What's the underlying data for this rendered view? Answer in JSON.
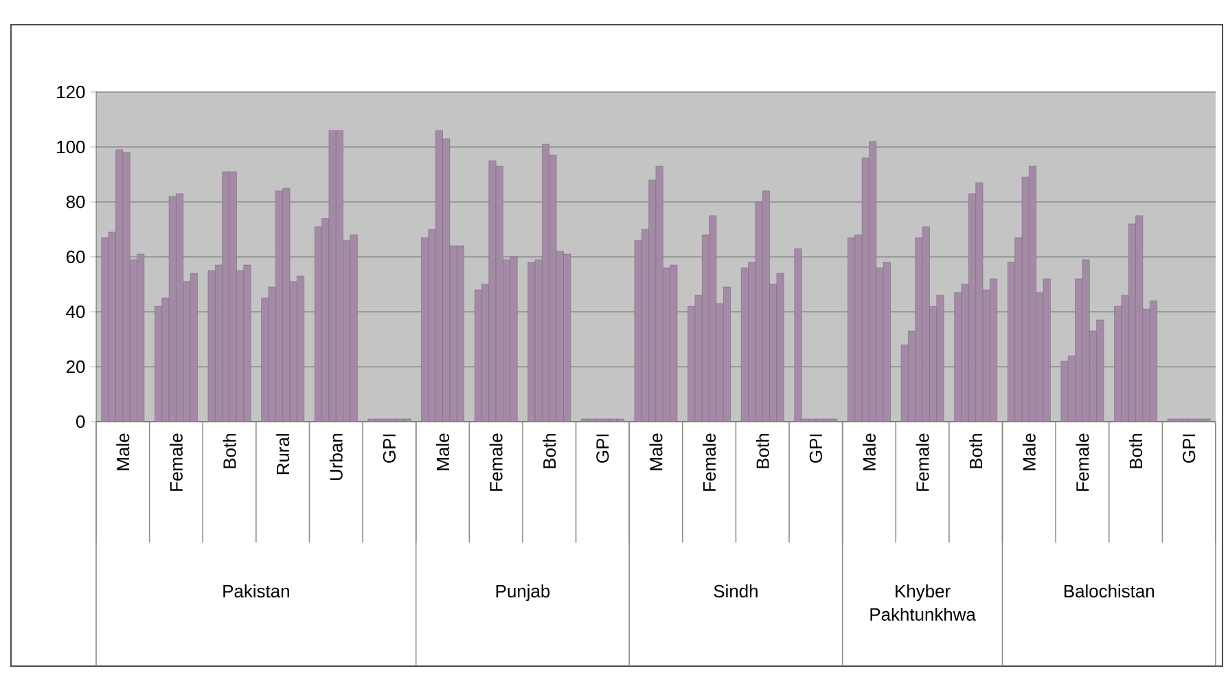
{
  "chart_data": {
    "type": "bar",
    "categories": [
      "Male",
      "Female",
      "Both",
      "Rural",
      "Urban",
      "GPI",
      "Male",
      "Female",
      "Both",
      "GPI",
      "Male",
      "Female",
      "Both",
      "GPI",
      "Male",
      "Female",
      "Both",
      "Male",
      "Female",
      "Both",
      "GPI"
    ],
    "series": [
      {
        "color": "#a58aa8",
        "values": [
          67,
          42,
          55,
          45,
          71,
          1,
          67,
          48,
          58,
          1,
          66,
          42,
          56,
          63,
          67,
          28,
          47,
          58,
          22,
          42,
          1
        ]
      },
      {
        "color": "#a58aa8",
        "values": [
          69,
          45,
          57,
          49,
          74,
          1,
          70,
          50,
          59,
          1,
          70,
          46,
          58,
          1,
          68,
          33,
          50,
          67,
          24,
          46,
          1
        ]
      },
      {
        "color": "#a58aa8",
        "values": [
          99,
          82,
          91,
          84,
          106,
          1,
          106,
          95,
          101,
          1,
          88,
          68,
          80,
          1,
          96,
          67,
          83,
          89,
          52,
          72,
          1
        ]
      },
      {
        "color": "#a58aa8",
        "values": [
          98,
          83,
          91,
          85,
          106,
          1,
          103,
          93,
          97,
          1,
          93,
          75,
          84,
          1,
          102,
          71,
          87,
          93,
          59,
          75,
          1
        ]
      },
      {
        "color": "#a58aa8",
        "values": [
          59,
          51,
          55,
          51,
          66,
          1,
          64,
          59,
          62,
          1,
          56,
          43,
          50,
          1,
          56,
          42,
          48,
          47,
          33,
          41,
          1
        ]
      },
      {
        "color": "#a58aa8",
        "values": [
          61,
          54,
          57,
          53,
          68,
          1,
          64,
          60,
          61,
          1,
          57,
          49,
          54,
          1,
          58,
          46,
          52,
          52,
          37,
          44,
          1
        ]
      }
    ],
    "ylim": [
      0,
      120
    ],
    "yticks": [
      0,
      20,
      40,
      60,
      80,
      100,
      120
    ],
    "grid": "y",
    "annotations": [
      "Pakistan",
      "Punjab",
      "Sindh",
      "Khyber Pakhtunkhwa",
      "Balochistan"
    ]
  }
}
